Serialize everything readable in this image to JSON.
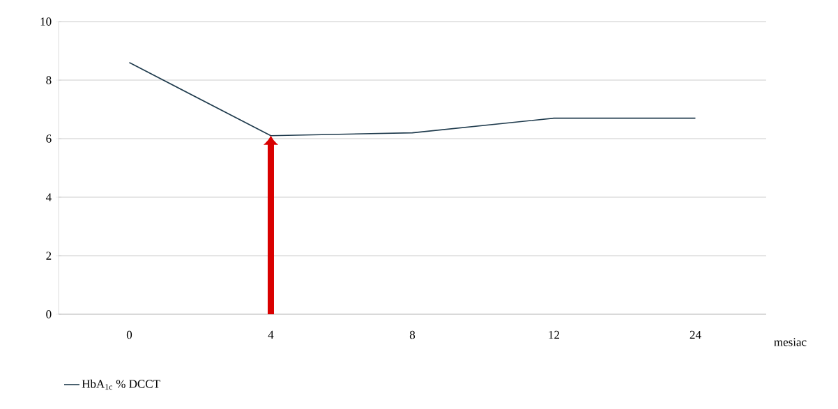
{
  "chart_data": {
    "type": "line",
    "xlabel": "mesiac",
    "categories": [
      "0",
      "4",
      "8",
      "12",
      "24"
    ],
    "series": [
      {
        "name": "HbA$_{1c}$ % DCCT",
        "color": "#1f3b4d",
        "values": [
          8.6,
          6.1,
          6.2,
          6.7,
          6.7
        ]
      }
    ],
    "ylim": [
      0,
      10
    ],
    "yticks": [
      0,
      2,
      4,
      6,
      8,
      10
    ],
    "grid": "y",
    "legend": "bottom left",
    "marker": "none",
    "line_style": "solid"
  }
}
